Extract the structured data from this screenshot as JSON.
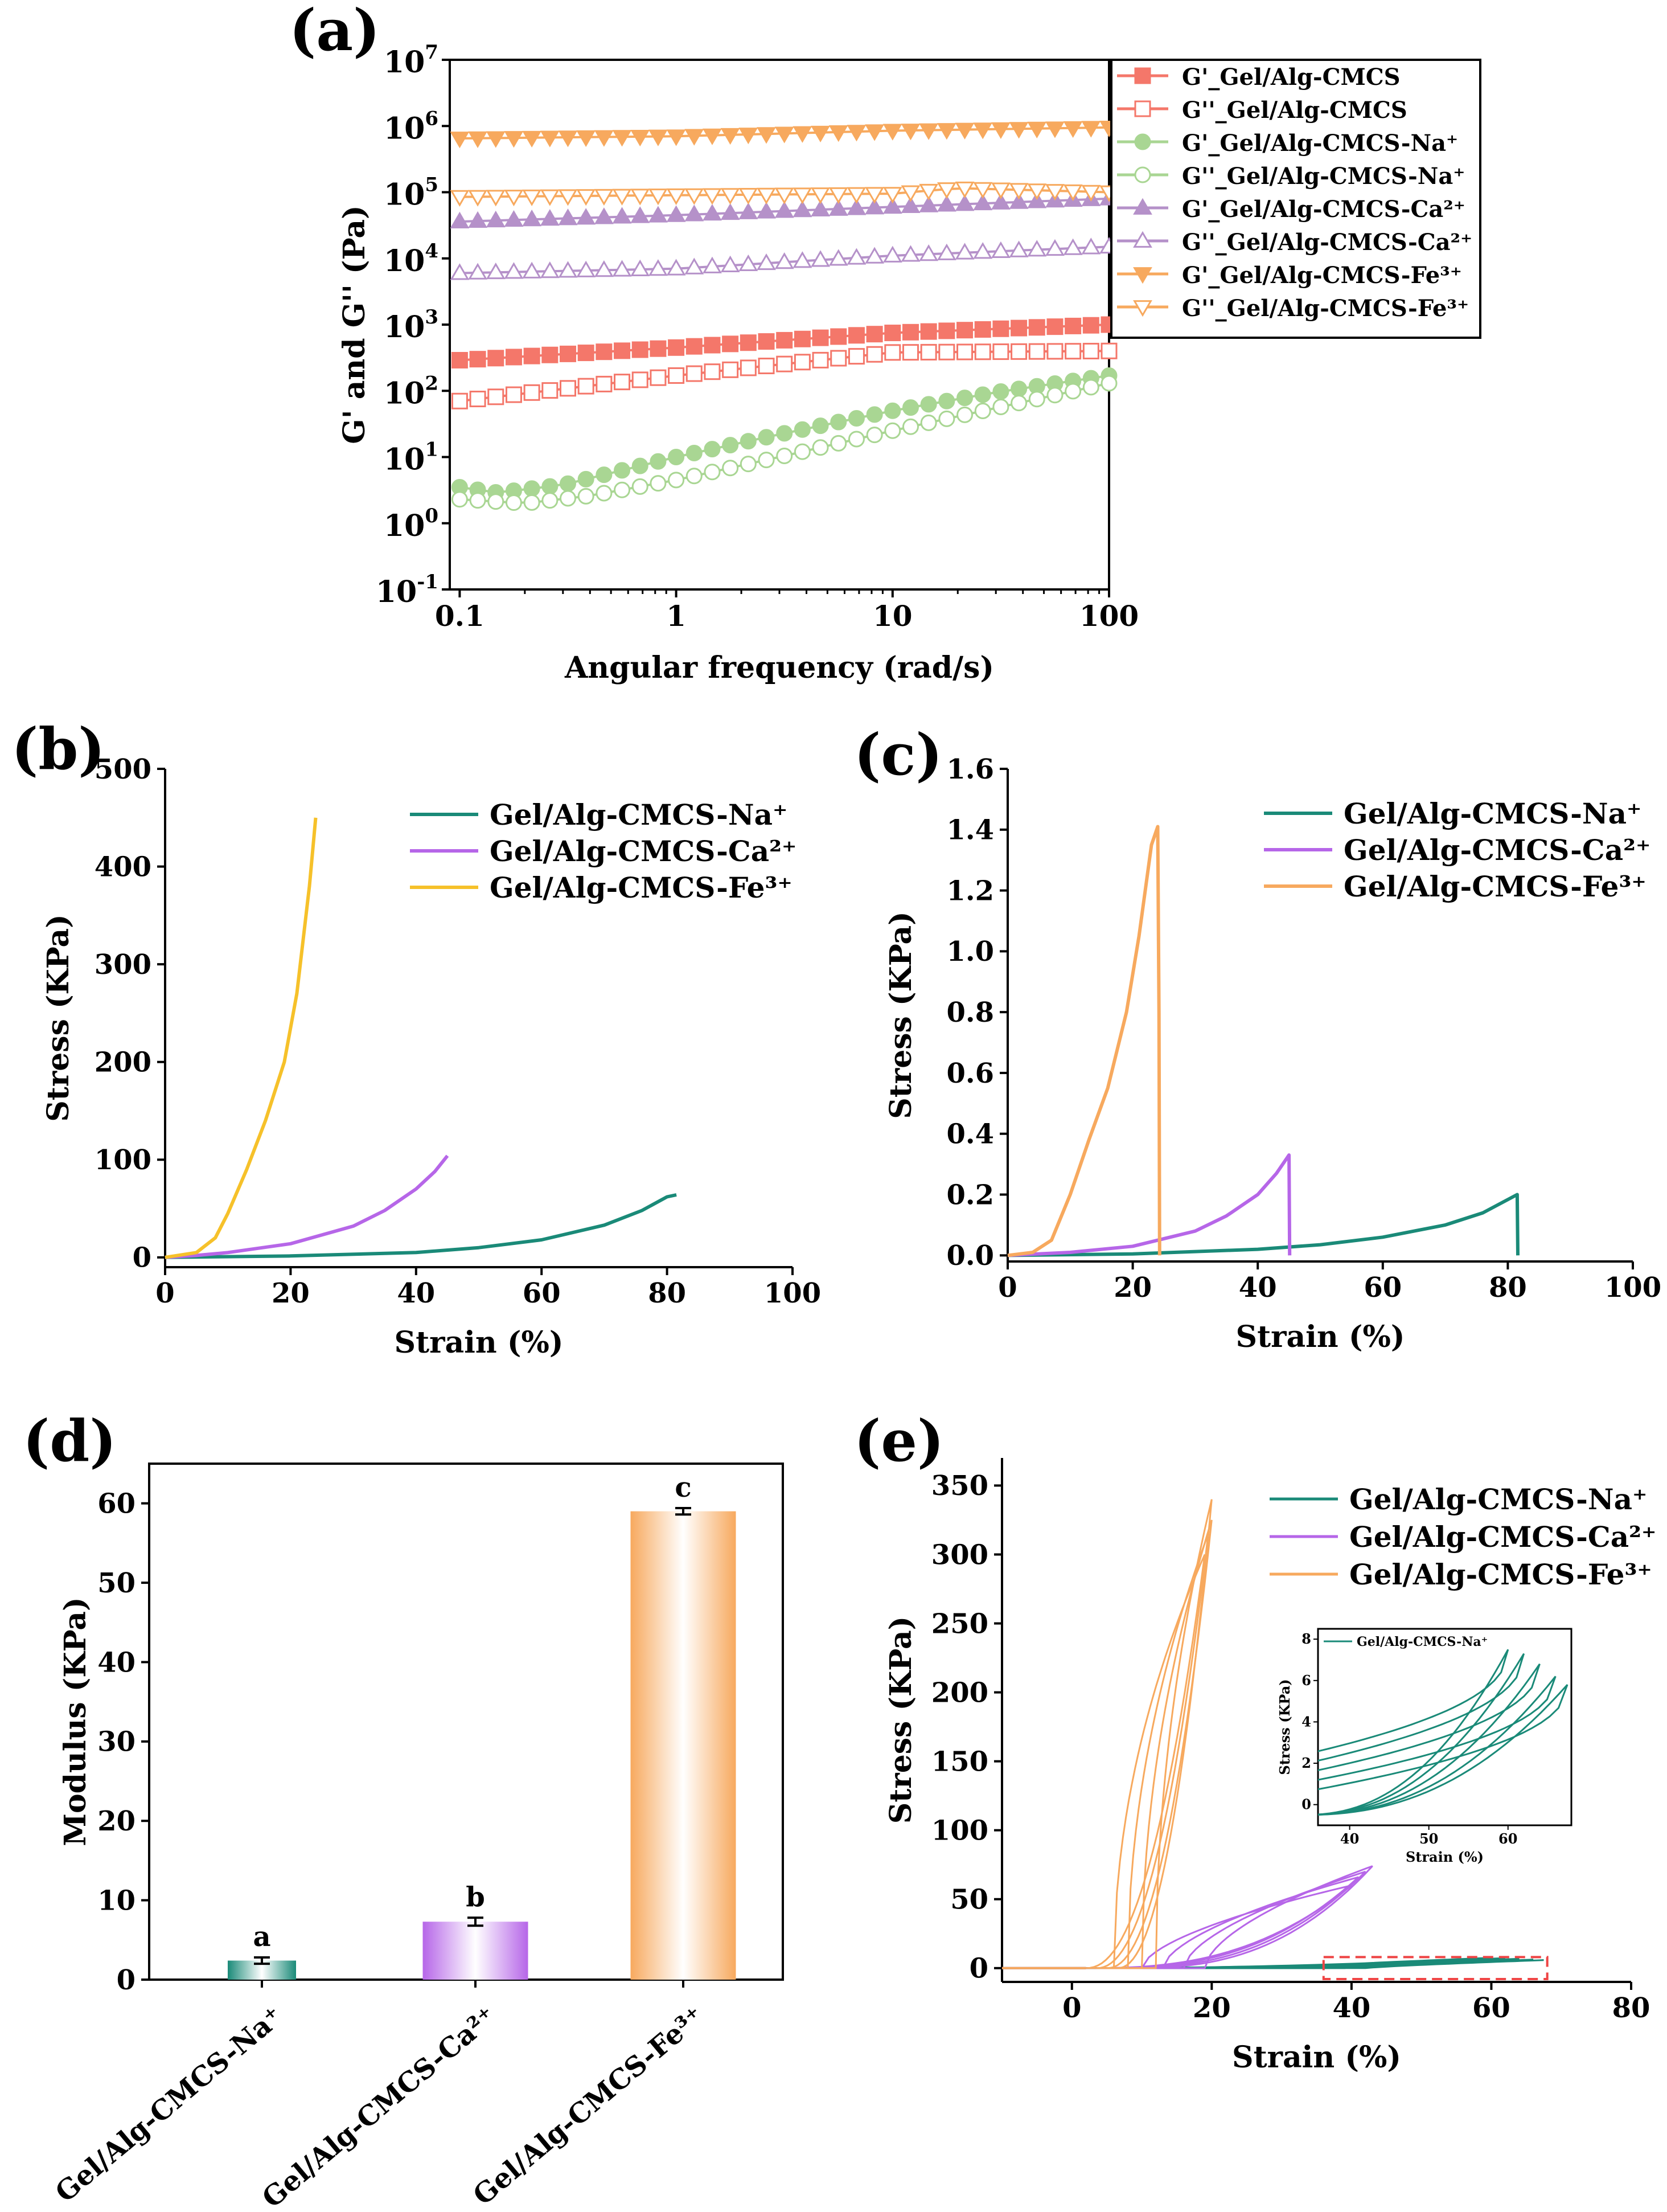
{
  "colors": {
    "cmcs": "#f4776a",
    "na": "#1a8a78",
    "na_light": "#a9d693",
    "ca": "#b666e8",
    "ca_a": "#b591c9",
    "fe": "#f7a95e",
    "fe_b": "#f6c12a"
  },
  "chart_data": [
    {
      "panel": "(a)",
      "type": "scatter",
      "xscale": "log",
      "yscale": "log",
      "xlim": [
        0.09,
        100
      ],
      "ylim": [
        0.1,
        10000000
      ],
      "xlabel": "Angular frequency (rad/s)",
      "ylabel": "G' and G'' (Pa)",
      "x_ticks": [
        "0.1",
        "1",
        "10",
        "100"
      ],
      "y_ticks": [
        {
          "base": "10",
          "exp": "-1"
        },
        {
          "base": "10",
          "exp": "0"
        },
        {
          "base": "10",
          "exp": "1"
        },
        {
          "base": "10",
          "exp": "2"
        },
        {
          "base": "10",
          "exp": "3"
        },
        {
          "base": "10",
          "exp": "4"
        },
        {
          "base": "10",
          "exp": "5"
        },
        {
          "base": "10",
          "exp": "6"
        },
        {
          "base": "10",
          "exp": "7"
        }
      ],
      "legend_position": "outside-top-right",
      "series": [
        {
          "name": "G'_Gel/Alg-CMCS",
          "marker": "square",
          "filled": true,
          "color": "cmcs",
          "points": [
            [
              0.1,
              290
            ],
            [
              1,
              450
            ],
            [
              10,
              750
            ],
            [
              100,
              1000
            ]
          ]
        },
        {
          "name": "G''_Gel/Alg-CMCS",
          "marker": "square",
          "filled": false,
          "color": "cmcs",
          "points": [
            [
              0.1,
              70
            ],
            [
              1,
              170
            ],
            [
              10,
              380
            ],
            [
              100,
              400
            ]
          ]
        },
        {
          "name": "G'_Gel/Alg-CMCS-Na⁺",
          "marker": "circle",
          "filled": true,
          "color": "na_light",
          "points": [
            [
              0.1,
              3.5
            ],
            [
              0.15,
              2.9
            ],
            [
              0.3,
              3.8
            ],
            [
              1,
              10
            ],
            [
              3,
              22
            ],
            [
              10,
              50
            ],
            [
              30,
              95
            ],
            [
              100,
              170
            ]
          ]
        },
        {
          "name": "G''_Gel/Alg-CMCS-Na⁺",
          "marker": "circle",
          "filled": false,
          "color": "na_light",
          "points": [
            [
              0.1,
              2.3
            ],
            [
              0.2,
              2.0
            ],
            [
              0.4,
              2.6
            ],
            [
              1,
              4.5
            ],
            [
              3,
              10
            ],
            [
              10,
              25
            ],
            [
              30,
              55
            ],
            [
              100,
              130
            ]
          ]
        },
        {
          "name": "G'_Gel/Alg-CMCS-Ca²⁺",
          "marker": "triangle-up",
          "filled": true,
          "color": "ca_a",
          "points": [
            [
              0.1,
              36000
            ],
            [
              1,
              45000
            ],
            [
              10,
              60000
            ],
            [
              100,
              80000
            ]
          ]
        },
        {
          "name": "G''_Gel/Alg-CMCS-Ca²⁺",
          "marker": "triangle-up",
          "filled": false,
          "color": "ca_a",
          "points": [
            [
              0.1,
              6000
            ],
            [
              1,
              7000
            ],
            [
              10,
              11000
            ],
            [
              100,
              15000
            ]
          ]
        },
        {
          "name": "G'_Gel/Alg-CMCS-Fe³⁺",
          "marker": "triangle-down",
          "filled": true,
          "color": "fe",
          "points": [
            [
              0.1,
              650000
            ],
            [
              1,
              700000
            ],
            [
              10,
              850000
            ],
            [
              100,
              950000
            ]
          ]
        },
        {
          "name": "G''_Gel/Alg-CMCS-Fe³⁺",
          "marker": "triangle-down",
          "filled": false,
          "color": "fe",
          "points": [
            [
              0.1,
              85000
            ],
            [
              1,
              90000
            ],
            [
              10,
              95000
            ],
            [
              20,
              115000
            ],
            [
              100,
              100000
            ]
          ]
        }
      ]
    },
    {
      "panel": "(b)",
      "type": "line",
      "xlim": [
        0,
        100
      ],
      "ylim": [
        -10,
        500
      ],
      "xlabel": "Strain (%)",
      "ylabel": "Stress (KPa)",
      "x_ticks": [
        "0",
        "20",
        "40",
        "60",
        "80",
        "100"
      ],
      "y_ticks": [
        "0",
        "100",
        "200",
        "300",
        "400",
        "500"
      ],
      "legend_position": "top-right",
      "series": [
        {
          "name": "Gel/Alg-CMCS-Na⁺",
          "color": "na",
          "points": [
            [
              0,
              0
            ],
            [
              20,
              1.5
            ],
            [
              40,
              5
            ],
            [
              50,
              10
            ],
            [
              60,
              18
            ],
            [
              70,
              33
            ],
            [
              76,
              48
            ],
            [
              80,
              62
            ],
            [
              81.5,
              64
            ]
          ]
        },
        {
          "name": "Gel/Alg-CMCS-Ca²⁺",
          "color": "ca",
          "points": [
            [
              0,
              0
            ],
            [
              5,
              2
            ],
            [
              10,
              5
            ],
            [
              20,
              14
            ],
            [
              30,
              32
            ],
            [
              35,
              48
            ],
            [
              40,
              70
            ],
            [
              43,
              88
            ],
            [
              45,
              104
            ]
          ]
        },
        {
          "name": "Gel/Alg-CMCS-Fe³⁺",
          "color": "fe_b",
          "points": [
            [
              0,
              0
            ],
            [
              5,
              5
            ],
            [
              8,
              20
            ],
            [
              10,
              45
            ],
            [
              13,
              90
            ],
            [
              16,
              140
            ],
            [
              19,
              200
            ],
            [
              21,
              270
            ],
            [
              23,
              380
            ],
            [
              24,
              450
            ]
          ]
        }
      ]
    },
    {
      "panel": "(c)",
      "type": "line",
      "xlim": [
        0,
        100
      ],
      "ylim": [
        -0.02,
        1.6
      ],
      "xlabel": "Strain (%)",
      "ylabel": "Stress (KPa)",
      "x_ticks": [
        "0",
        "20",
        "40",
        "60",
        "80",
        "100"
      ],
      "y_ticks": [
        "0.0",
        "0.2",
        "0.4",
        "0.6",
        "0.8",
        "1.0",
        "1.2",
        "1.4",
        "1.6"
      ],
      "legend_position": "top-right",
      "series": [
        {
          "name": "Gel/Alg-CMCS-Na⁺",
          "color": "na",
          "points": [
            [
              0,
              0
            ],
            [
              20,
              0.005
            ],
            [
              40,
              0.02
            ],
            [
              50,
              0.035
            ],
            [
              60,
              0.06
            ],
            [
              70,
              0.1
            ],
            [
              76,
              0.14
            ],
            [
              81.5,
              0.2
            ],
            [
              81.6,
              0.0
            ]
          ]
        },
        {
          "name": "Gel/Alg-CMCS-Ca²⁺",
          "color": "ca",
          "points": [
            [
              0,
              0
            ],
            [
              10,
              0.01
            ],
            [
              20,
              0.03
            ],
            [
              30,
              0.08
            ],
            [
              35,
              0.13
            ],
            [
              40,
              0.2
            ],
            [
              43,
              0.27
            ],
            [
              45,
              0.33
            ],
            [
              45.1,
              0.0
            ]
          ]
        },
        {
          "name": "Gel/Alg-CMCS-Fe³⁺",
          "color": "fe",
          "points": [
            [
              0,
              0
            ],
            [
              4,
              0.01
            ],
            [
              7,
              0.05
            ],
            [
              10,
              0.2
            ],
            [
              13,
              0.38
            ],
            [
              16,
              0.55
            ],
            [
              19,
              0.8
            ],
            [
              21,
              1.05
            ],
            [
              23,
              1.35
            ],
            [
              24,
              1.41
            ],
            [
              24.2,
              0.8
            ],
            [
              24.3,
              0.0
            ]
          ]
        }
      ]
    },
    {
      "panel": "(d)",
      "type": "bar",
      "ylim": [
        0,
        65
      ],
      "ylabel": "Modulus (KPa)",
      "y_ticks": [
        "0",
        "10",
        "20",
        "30",
        "40",
        "50",
        "60"
      ],
      "categories": [
        "Gel/Alg-CMCS-Na⁺",
        "Gel/Alg-CMCS-Ca²⁺",
        "Gel/Alg-CMCS-Fe³⁺"
      ],
      "values": [
        2.4,
        7.3,
        59
      ],
      "errors": [
        0.4,
        0.5,
        0.4
      ],
      "significance_labels": [
        "a",
        "b",
        "c"
      ],
      "colors": [
        "na",
        "ca",
        "fe"
      ]
    },
    {
      "panel": "(e)",
      "type": "line",
      "xlim": [
        -10,
        80
      ],
      "ylim": [
        -10,
        370
      ],
      "xlabel": "Strain (%)",
      "ylabel": "Stress (KPa)",
      "x_ticks": [
        "0",
        "20",
        "40",
        "60",
        "80"
      ],
      "y_ticks": [
        "0",
        "50",
        "100",
        "150",
        "200",
        "250",
        "300",
        "350"
      ],
      "legend_position": "top-right",
      "series": [
        {
          "name": "Gel/Alg-CMCS-Na⁺",
          "color": "na",
          "cycles": [
            [
              60,
              7.5
            ],
            [
              62,
              7.3
            ],
            [
              64,
              6.8
            ],
            [
              66,
              6.2
            ],
            [
              67.5,
              5.8
            ]
          ]
        },
        {
          "name": "Gel/Alg-CMCS-Ca²⁺",
          "color": "ca",
          "cycles": [
            [
              40,
              60
            ],
            [
              41,
              66
            ],
            [
              42,
              70
            ],
            [
              43,
              74
            ]
          ]
        },
        {
          "name": "Gel/Alg-CMCS-Fe³⁺",
          "color": "fe",
          "cycles": [
            [
              19,
              300
            ],
            [
              19.5,
              315
            ],
            [
              20,
              325
            ],
            [
              20,
              340
            ]
          ]
        }
      ],
      "inset": {
        "legend": "Gel/Alg-CMCS-Na⁺",
        "xlim": [
          36,
          68
        ],
        "ylim": [
          -1,
          8.5
        ],
        "xlabel": "Strain (%)",
        "ylabel": "Stress (KPa)",
        "x_ticks": [
          "40",
          "50",
          "60"
        ],
        "y_ticks": [
          "0",
          "2",
          "4",
          "6",
          "8"
        ]
      }
    }
  ]
}
